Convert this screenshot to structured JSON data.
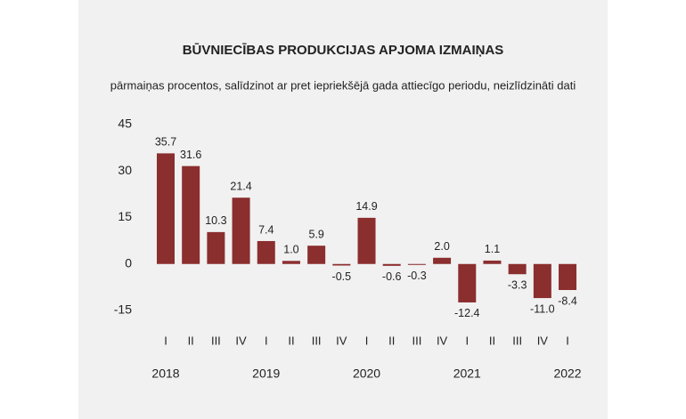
{
  "chart_data": {
    "type": "bar",
    "title": "BŪVNIECĪBAS PRODUKCIJAS APJOMA IZMAIŅAS",
    "subtitle": "pārmaiņas procentos, salīdzinot ar pret iepriekšējā gada attiecīgo periodu, neizlīdzināti dati",
    "categories": [
      "I",
      "II",
      "III",
      "IV",
      "I",
      "II",
      "III",
      "IV",
      "I",
      "II",
      "III",
      "IV",
      "I",
      "II",
      "III",
      "IV",
      "I"
    ],
    "year_labels": [
      "2018",
      "2019",
      "2020",
      "2021",
      "2022"
    ],
    "values": [
      35.7,
      31.6,
      10.3,
      21.4,
      7.4,
      1.0,
      5.9,
      -0.5,
      14.9,
      -0.6,
      -0.3,
      2.0,
      -12.4,
      1.1,
      -3.3,
      -11.0,
      -8.4
    ],
    "value_labels": [
      "35.7",
      "31.6",
      "10.3",
      "21.4",
      "7.4",
      "1.0",
      "5.9",
      "-0.5",
      "14.9",
      "-0.6",
      "-0.3",
      "2.0",
      "-12.4",
      "1.1",
      "-3.3",
      "-11.0",
      "-8.4"
    ],
    "color": "#8b2e2e",
    "ylim": [
      -15,
      45
    ],
    "yticks": [
      -15,
      0,
      15,
      30,
      45
    ],
    "grid": false
  }
}
